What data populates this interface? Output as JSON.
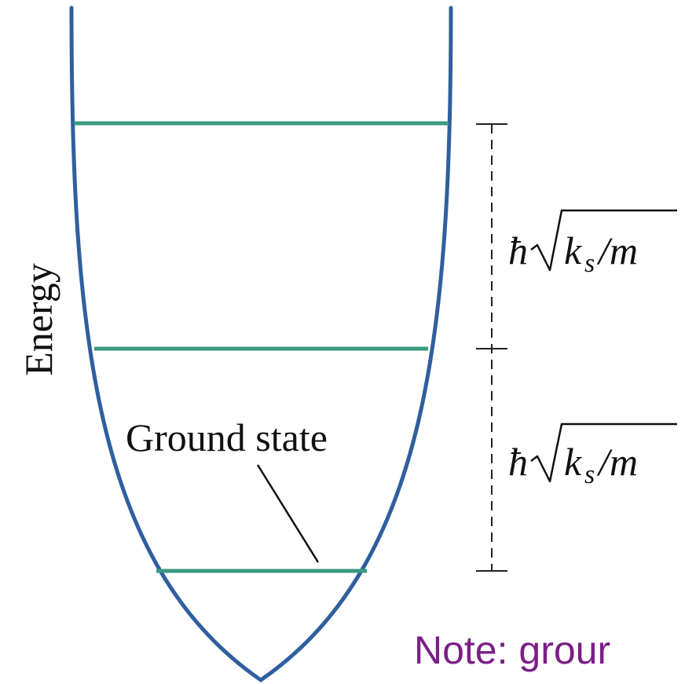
{
  "axis_label": "Energy",
  "ground_state_label": "Ground state",
  "spacing_labels": {
    "upper": {
      "hbar": "ħ",
      "radicand": "k",
      "sub": "s",
      "rest": "/m"
    },
    "lower": {
      "hbar": "ħ",
      "radicand": "k",
      "sub": "s",
      "rest": "/m"
    }
  },
  "note": "Note: grour",
  "colors": {
    "potential_curve": "#2f5f9e",
    "energy_levels": "#3a9a7e",
    "note_text": "#7a1f86",
    "annotation": "#111111"
  },
  "energy_levels": [
    {
      "name": "ground",
      "level_index": 0
    },
    {
      "name": "first-excited",
      "level_index": 1
    },
    {
      "name": "second-excited",
      "level_index": 2
    }
  ]
}
